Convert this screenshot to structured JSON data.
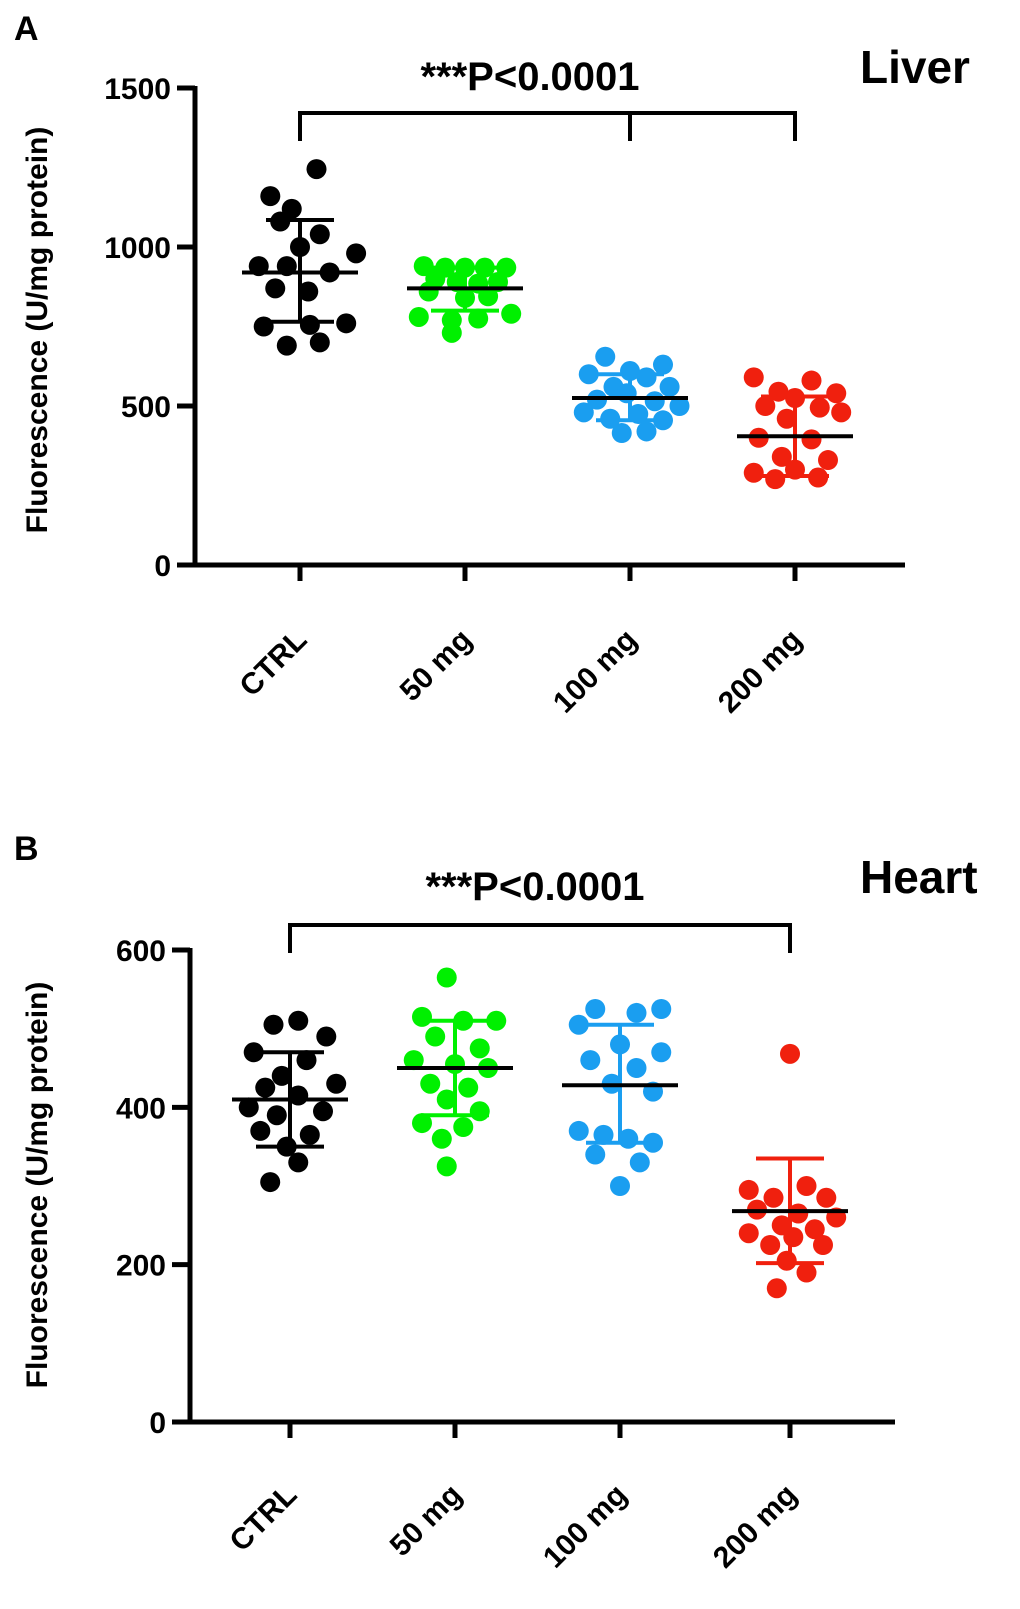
{
  "chart_data": [
    {
      "type": "scatter",
      "panel_label": "A",
      "title": "Liver",
      "ylabel": "Fluorescence (U/mg protein)",
      "xlabel": "",
      "ylim": [
        0,
        1500
      ],
      "yticks": [
        "0",
        "500",
        "1000",
        "1500"
      ],
      "categories": [
        "CTRL",
        "50 mg",
        "100 mg",
        "200 mg"
      ],
      "annotation": "***P<0.0001",
      "series": [
        {
          "name": "CTRL",
          "color": "#000000",
          "mean": 920,
          "sd_low": 765,
          "sd_high": 1085,
          "points": [
            {
              "dx": 0.1,
              "y": 1245
            },
            {
              "dx": -0.18,
              "y": 1160
            },
            {
              "dx": -0.05,
              "y": 1120
            },
            {
              "dx": -0.12,
              "y": 1080
            },
            {
              "dx": 0.12,
              "y": 1040
            },
            {
              "dx": 0.0,
              "y": 1000
            },
            {
              "dx": 0.34,
              "y": 980
            },
            {
              "dx": -0.25,
              "y": 940
            },
            {
              "dx": -0.08,
              "y": 940
            },
            {
              "dx": 0.18,
              "y": 920
            },
            {
              "dx": -0.15,
              "y": 870
            },
            {
              "dx": 0.05,
              "y": 860
            },
            {
              "dx": -0.22,
              "y": 750
            },
            {
              "dx": 0.06,
              "y": 755
            },
            {
              "dx": 0.28,
              "y": 760
            },
            {
              "dx": 0.12,
              "y": 700
            },
            {
              "dx": -0.08,
              "y": 690
            }
          ]
        },
        {
          "name": "50 mg",
          "color": "#00f000",
          "mean": 870,
          "sd_low": 800,
          "sd_high": 935,
          "points": [
            {
              "dx": -0.25,
              "y": 940
            },
            {
              "dx": -0.12,
              "y": 935
            },
            {
              "dx": 0.0,
              "y": 935
            },
            {
              "dx": 0.12,
              "y": 935
            },
            {
              "dx": 0.25,
              "y": 935
            },
            {
              "dx": -0.18,
              "y": 900
            },
            {
              "dx": -0.05,
              "y": 890
            },
            {
              "dx": 0.08,
              "y": 885
            },
            {
              "dx": 0.2,
              "y": 890
            },
            {
              "dx": -0.22,
              "y": 860
            },
            {
              "dx": 0.0,
              "y": 840
            },
            {
              "dx": 0.14,
              "y": 845
            },
            {
              "dx": -0.28,
              "y": 780
            },
            {
              "dx": 0.28,
              "y": 790
            },
            {
              "dx": -0.08,
              "y": 770
            },
            {
              "dx": 0.08,
              "y": 775
            },
            {
              "dx": -0.08,
              "y": 730
            }
          ]
        },
        {
          "name": "100 mg",
          "color": "#1a9ef0",
          "mean": 525,
          "sd_low": 455,
          "sd_high": 600,
          "points": [
            {
              "dx": -0.15,
              "y": 655
            },
            {
              "dx": 0.2,
              "y": 630
            },
            {
              "dx": 0.0,
              "y": 610
            },
            {
              "dx": -0.25,
              "y": 600
            },
            {
              "dx": 0.1,
              "y": 590
            },
            {
              "dx": -0.1,
              "y": 560
            },
            {
              "dx": 0.24,
              "y": 560
            },
            {
              "dx": -0.02,
              "y": 540
            },
            {
              "dx": -0.2,
              "y": 520
            },
            {
              "dx": 0.15,
              "y": 515
            },
            {
              "dx": 0.3,
              "y": 500
            },
            {
              "dx": -0.28,
              "y": 480
            },
            {
              "dx": 0.05,
              "y": 475
            },
            {
              "dx": -0.12,
              "y": 460
            },
            {
              "dx": 0.2,
              "y": 455
            },
            {
              "dx": -0.05,
              "y": 415
            },
            {
              "dx": 0.1,
              "y": 420
            }
          ]
        },
        {
          "name": "200 mg",
          "color": "#f0200e",
          "mean": 405,
          "sd_low": 280,
          "sd_high": 530,
          "points": [
            {
              "dx": -0.25,
              "y": 590
            },
            {
              "dx": 0.1,
              "y": 580
            },
            {
              "dx": -0.1,
              "y": 545
            },
            {
              "dx": 0.25,
              "y": 540
            },
            {
              "dx": 0.0,
              "y": 525
            },
            {
              "dx": -0.18,
              "y": 500
            },
            {
              "dx": 0.15,
              "y": 495
            },
            {
              "dx": 0.28,
              "y": 480
            },
            {
              "dx": -0.05,
              "y": 460
            },
            {
              "dx": -0.22,
              "y": 400
            },
            {
              "dx": 0.1,
              "y": 395
            },
            {
              "dx": -0.08,
              "y": 340
            },
            {
              "dx": 0.2,
              "y": 330
            },
            {
              "dx": -0.25,
              "y": 290
            },
            {
              "dx": 0.0,
              "y": 300
            },
            {
              "dx": 0.14,
              "y": 275
            },
            {
              "dx": -0.12,
              "y": 270
            }
          ]
        }
      ],
      "bracket": {
        "from_index": 0,
        "to_index": 3,
        "mid_tick_index": 2,
        "y": 1420,
        "drop": 1300
      }
    },
    {
      "type": "scatter",
      "panel_label": "B",
      "title": "Heart",
      "ylabel": "Fluorescence (U/mg protein)",
      "xlabel": "",
      "ylim": [
        0,
        600
      ],
      "yticks": [
        "0",
        "200",
        "400",
        "600"
      ],
      "categories": [
        "CTRL",
        "50 mg",
        "100 mg",
        "200 mg"
      ],
      "annotation": "***P<0.0001",
      "series": [
        {
          "name": "CTRL",
          "color": "#000000",
          "mean": 410,
          "sd_low": 350,
          "sd_high": 470,
          "points": [
            {
              "dx": 0.05,
              "y": 510
            },
            {
              "dx": -0.1,
              "y": 505
            },
            {
              "dx": 0.22,
              "y": 490
            },
            {
              "dx": -0.22,
              "y": 470
            },
            {
              "dx": 0.1,
              "y": 460
            },
            {
              "dx": -0.05,
              "y": 440
            },
            {
              "dx": 0.28,
              "y": 430
            },
            {
              "dx": -0.15,
              "y": 425
            },
            {
              "dx": 0.05,
              "y": 415
            },
            {
              "dx": -0.25,
              "y": 400
            },
            {
              "dx": 0.2,
              "y": 395
            },
            {
              "dx": -0.08,
              "y": 390
            },
            {
              "dx": -0.18,
              "y": 370
            },
            {
              "dx": 0.12,
              "y": 365
            },
            {
              "dx": -0.02,
              "y": 350
            },
            {
              "dx": 0.05,
              "y": 330
            },
            {
              "dx": -0.12,
              "y": 305
            }
          ]
        },
        {
          "name": "50 mg",
          "color": "#00f000",
          "mean": 450,
          "sd_low": 390,
          "sd_high": 510,
          "points": [
            {
              "dx": -0.05,
              "y": 565
            },
            {
              "dx": -0.2,
              "y": 515
            },
            {
              "dx": 0.05,
              "y": 510
            },
            {
              "dx": 0.25,
              "y": 510
            },
            {
              "dx": -0.12,
              "y": 490
            },
            {
              "dx": 0.15,
              "y": 475
            },
            {
              "dx": -0.25,
              "y": 460
            },
            {
              "dx": 0.0,
              "y": 455
            },
            {
              "dx": 0.2,
              "y": 450
            },
            {
              "dx": -0.15,
              "y": 430
            },
            {
              "dx": 0.08,
              "y": 425
            },
            {
              "dx": -0.05,
              "y": 410
            },
            {
              "dx": 0.15,
              "y": 395
            },
            {
              "dx": -0.2,
              "y": 380
            },
            {
              "dx": 0.05,
              "y": 375
            },
            {
              "dx": -0.08,
              "y": 360
            },
            {
              "dx": -0.05,
              "y": 325
            }
          ]
        },
        {
          "name": "100 mg",
          "color": "#1a9ef0",
          "mean": 428,
          "sd_low": 355,
          "sd_high": 505,
          "points": [
            {
              "dx": -0.15,
              "y": 525
            },
            {
              "dx": 0.1,
              "y": 520
            },
            {
              "dx": 0.25,
              "y": 525
            },
            {
              "dx": -0.25,
              "y": 505
            },
            {
              "dx": 0.0,
              "y": 480
            },
            {
              "dx": 0.25,
              "y": 470
            },
            {
              "dx": -0.18,
              "y": 460
            },
            {
              "dx": 0.1,
              "y": 450
            },
            {
              "dx": -0.05,
              "y": 430
            },
            {
              "dx": 0.2,
              "y": 420
            },
            {
              "dx": -0.25,
              "y": 370
            },
            {
              "dx": -0.1,
              "y": 365
            },
            {
              "dx": 0.05,
              "y": 360
            },
            {
              "dx": 0.2,
              "y": 355
            },
            {
              "dx": -0.15,
              "y": 340
            },
            {
              "dx": 0.12,
              "y": 330
            },
            {
              "dx": 0.0,
              "y": 300
            }
          ]
        },
        {
          "name": "200 mg",
          "color": "#f0200e",
          "mean": 268,
          "sd_low": 202,
          "sd_high": 335,
          "points": [
            {
              "dx": 0.0,
              "y": 468
            },
            {
              "dx": -0.25,
              "y": 295
            },
            {
              "dx": 0.1,
              "y": 300
            },
            {
              "dx": -0.1,
              "y": 285
            },
            {
              "dx": 0.22,
              "y": 285
            },
            {
              "dx": -0.2,
              "y": 270
            },
            {
              "dx": 0.05,
              "y": 265
            },
            {
              "dx": 0.28,
              "y": 260
            },
            {
              "dx": -0.05,
              "y": 250
            },
            {
              "dx": 0.15,
              "y": 245
            },
            {
              "dx": -0.25,
              "y": 240
            },
            {
              "dx": 0.02,
              "y": 235
            },
            {
              "dx": -0.12,
              "y": 225
            },
            {
              "dx": 0.2,
              "y": 225
            },
            {
              "dx": -0.02,
              "y": 205
            },
            {
              "dx": 0.1,
              "y": 190
            },
            {
              "dx": -0.08,
              "y": 170
            }
          ]
        }
      ],
      "bracket": {
        "from_index": 0,
        "to_index": 3,
        "mid_tick_index": null,
        "y": 625,
        "drop": 600
      }
    }
  ]
}
